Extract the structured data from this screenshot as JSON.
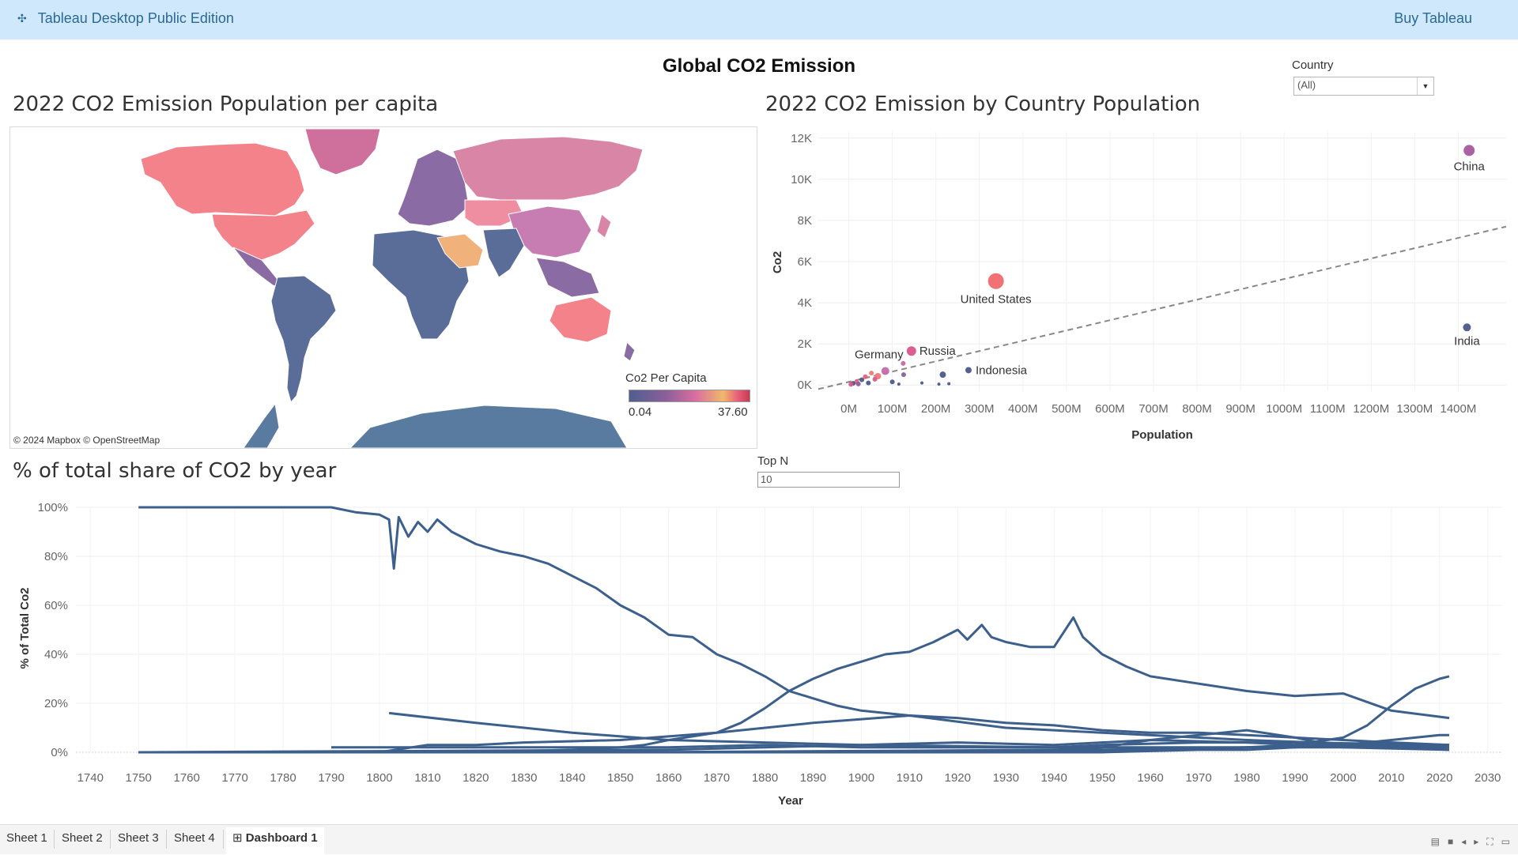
{
  "app": {
    "title": "Tableau Desktop Public Edition",
    "buy": "Buy Tableau"
  },
  "dashboard": {
    "title": "Global CO2 Emission"
  },
  "filters": {
    "country_label": "Country",
    "country_value": "(All)",
    "topn_label": "Top N",
    "topn_value": "10"
  },
  "map": {
    "title": "2022 CO2 Emission Population per capita",
    "credit": "© 2024 Mapbox © OpenStreetMap",
    "legend_title": "Co2 Per Capita",
    "legend_min": "0.04",
    "legend_max": "37.60"
  },
  "scatter": {
    "title": "2022 CO2 Emission by Country Population",
    "xlabel": "Population",
    "ylabel": "Co2"
  },
  "line": {
    "title": "% of total share of CO2 by year",
    "xlabel": "Year",
    "ylabel": "% of Total Co2"
  },
  "tabs": [
    "Sheet 1",
    "Sheet 2",
    "Sheet 3",
    "Sheet 4",
    "Dashboard 1"
  ],
  "colors": {
    "line": "#3c5f8c",
    "topbar": "#cfe8fb"
  },
  "chart_data": [
    {
      "type": "scatter",
      "title": "2022 CO2 Emission by Country Population",
      "xlabel": "Population",
      "ylabel": "Co2",
      "x_ticks": [
        "0M",
        "100M",
        "200M",
        "300M",
        "400M",
        "500M",
        "600M",
        "700M",
        "800M",
        "900M",
        "1000M",
        "1100M",
        "1200M",
        "1300M",
        "1400M"
      ],
      "y_ticks": [
        "0K",
        "2K",
        "4K",
        "6K",
        "8K",
        "10K",
        "12K"
      ],
      "xlim": [
        -70,
        1510
      ],
      "ylim": [
        -300,
        12300
      ],
      "trend_line": {
        "from": [
          -70,
          -200
        ],
        "to": [
          1510,
          7700
        ]
      },
      "points": [
        {
          "label": "China",
          "x": 1425,
          "y": 11400,
          "size": 7,
          "color": "#a55a9e"
        },
        {
          "label": "India",
          "x": 1420,
          "y": 2800,
          "size": 5,
          "color": "#4a5a8a"
        },
        {
          "label": "United States",
          "x": 338,
          "y": 5050,
          "size": 10,
          "color": "#ef6a6e"
        },
        {
          "label": "Russia",
          "x": 144,
          "y": 1650,
          "size": 6,
          "color": "#d9578b"
        },
        {
          "label": "Indonesia",
          "x": 275,
          "y": 720,
          "size": 4,
          "color": "#4a5a8a"
        },
        {
          "label": "Germany",
          "x": 84,
          "y": 680,
          "size": 5,
          "color": "#c46aa8"
        },
        {
          "label": "",
          "x": 125,
          "y": 1050,
          "size": 3,
          "color": "#c46aa8"
        },
        {
          "label": "",
          "x": 216,
          "y": 500,
          "size": 4,
          "color": "#4a5a8a"
        },
        {
          "label": "",
          "x": 126,
          "y": 500,
          "size": 3,
          "color": "#8a5f9a"
        },
        {
          "label": "",
          "x": 67,
          "y": 430,
          "size": 4,
          "color": "#ef7a7a"
        },
        {
          "label": "",
          "x": 52,
          "y": 580,
          "size": 3,
          "color": "#ef7a7a"
        },
        {
          "label": "",
          "x": 38,
          "y": 400,
          "size": 3,
          "color": "#e9607a"
        },
        {
          "label": "",
          "x": 60,
          "y": 280,
          "size": 3,
          "color": "#d9578b"
        },
        {
          "label": "",
          "x": 30,
          "y": 250,
          "size": 3,
          "color": "#4a5a8a"
        },
        {
          "label": "",
          "x": 18,
          "y": 150,
          "size": 3,
          "color": "#e9607a"
        },
        {
          "label": "",
          "x": 10,
          "y": 80,
          "size": 3,
          "color": "#4a5a8a"
        },
        {
          "label": "",
          "x": 45,
          "y": 100,
          "size": 3,
          "color": "#4a5a8a"
        },
        {
          "label": "",
          "x": 100,
          "y": 150,
          "size": 3,
          "color": "#4a5a8a"
        },
        {
          "label": "",
          "x": 168,
          "y": 100,
          "size": 2,
          "color": "#4a5a8a"
        },
        {
          "label": "",
          "x": 230,
          "y": 60,
          "size": 2,
          "color": "#4a5a8a"
        },
        {
          "label": "",
          "x": 5,
          "y": 30,
          "size": 3,
          "color": "#d9578b"
        },
        {
          "label": "",
          "x": 22,
          "y": 50,
          "size": 3,
          "color": "#8a5f9a"
        },
        {
          "label": "",
          "x": 115,
          "y": 40,
          "size": 2,
          "color": "#4a5a8a"
        },
        {
          "label": "",
          "x": 207,
          "y": 40,
          "size": 2,
          "color": "#4a5a8a"
        }
      ]
    },
    {
      "type": "line",
      "title": "% of total share of CO2 by year",
      "xlabel": "Year",
      "ylabel": "% of Total Co2",
      "x_ticks": [
        1740,
        1750,
        1760,
        1770,
        1780,
        1790,
        1800,
        1810,
        1820,
        1830,
        1840,
        1850,
        1860,
        1870,
        1880,
        1890,
        1900,
        1910,
        1920,
        1930,
        1940,
        1950,
        1960,
        1970,
        1980,
        1990,
        2000,
        2010,
        2020,
        2030
      ],
      "y_ticks": [
        "0%",
        "20%",
        "40%",
        "60%",
        "80%",
        "100%"
      ],
      "xlim": [
        1737,
        2033
      ],
      "ylim": [
        0,
        100
      ],
      "series": [
        {
          "x": [
            1750,
            1790,
            1795,
            1800,
            1802,
            1803,
            1804,
            1806,
            1808,
            1810,
            1812,
            1815,
            1820,
            1825,
            1830,
            1835,
            1840,
            1845,
            1850,
            1855,
            1860,
            1865,
            1870,
            1875,
            1880,
            1885,
            1890,
            1895,
            1900,
            1910,
            1920,
            1925,
            1930,
            1940,
            1950,
            1960,
            1970,
            1980,
            1990,
            2000,
            2010,
            2022
          ],
          "y": [
            100,
            100,
            98,
            97,
            95,
            75,
            96,
            88,
            94,
            90,
            95,
            90,
            85,
            82,
            80,
            77,
            72,
            67,
            60,
            55,
            48,
            47,
            40,
            36,
            31,
            25,
            22,
            19,
            17,
            15,
            14,
            13,
            12,
            11,
            9,
            8,
            8,
            7,
            6,
            5,
            4,
            3
          ]
        },
        {
          "x": [
            1750,
            1780,
            1800,
            1820,
            1830,
            1840,
            1850,
            1855,
            1860,
            1870,
            1875,
            1880,
            1885,
            1890,
            1895,
            1900,
            1905,
            1910,
            1915,
            1920,
            1922,
            1925,
            1927,
            1930,
            1935,
            1940,
            1944,
            1946,
            1950,
            1955,
            1960,
            1970,
            1980,
            1990,
            2000,
            2010,
            2022
          ],
          "y": [
            0,
            0,
            0,
            0,
            0.5,
            1,
            2,
            3,
            5,
            8,
            12,
            18,
            25,
            30,
            34,
            37,
            40,
            41,
            45,
            50,
            46,
            52,
            47,
            45,
            43,
            43,
            55,
            47,
            40,
            35,
            31,
            28,
            25,
            23,
            24,
            17,
            14
          ]
        },
        {
          "x": [
            1750,
            1850,
            1900,
            1950,
            1980,
            1990,
            2000,
            2005,
            2010,
            2015,
            2020,
            2022
          ],
          "y": [
            0,
            0,
            0,
            1,
            2,
            3,
            6,
            11,
            19,
            26,
            30,
            31
          ]
        },
        {
          "x": [
            1802,
            1820,
            1840,
            1860,
            1880,
            1900,
            1920,
            1940,
            1950,
            1970,
            1990,
            2022
          ],
          "y": [
            16,
            12,
            8,
            5,
            4,
            3,
            2.5,
            2,
            3,
            4,
            4,
            3
          ]
        },
        {
          "x": [
            1750,
            1860,
            1880,
            1900,
            1920,
            1940,
            1960,
            1980,
            1990,
            2000,
            2010,
            2022
          ],
          "y": [
            0,
            1,
            2,
            3,
            4,
            3,
            5,
            4,
            3,
            3,
            2,
            1
          ]
        },
        {
          "x": [
            1750,
            1850,
            1900,
            1940,
            1950,
            1960,
            1970,
            1980,
            1990,
            2000,
            2010,
            2022
          ],
          "y": [
            0,
            0,
            0.5,
            1,
            2,
            5,
            7,
            9,
            6,
            2,
            2,
            2
          ]
        },
        {
          "x": [
            1750,
            1950,
            1970,
            1980,
            1990,
            2000,
            2010,
            2020,
            2022
          ],
          "y": [
            0,
            0,
            1,
            1,
            2,
            3,
            5,
            7,
            7
          ]
        },
        {
          "x": [
            1750,
            1900,
            1940,
            1950,
            1960,
            1970,
            1980,
            1990,
            2000,
            2010,
            2022
          ],
          "y": [
            0,
            0,
            0,
            0.5,
            1,
            1.5,
            2,
            2.5,
            3,
            3,
            3
          ]
        },
        {
          "x": [
            1750,
            1800,
            1810,
            1820,
            1830,
            1850,
            1870,
            1890,
            1910,
            1930,
            1950,
            1980,
            2022
          ],
          "y": [
            0,
            0,
            3,
            3,
            4,
            5,
            8,
            12,
            15,
            10,
            8,
            5,
            2
          ]
        },
        {
          "x": [
            1790,
            1800,
            1820,
            1840,
            1860,
            1880,
            1900,
            1920,
            1940,
            1960,
            1980,
            2000,
            2022
          ],
          "y": [
            2,
            2,
            2,
            2,
            2,
            3,
            2,
            2,
            2,
            2,
            2,
            2,
            1
          ]
        }
      ]
    }
  ]
}
